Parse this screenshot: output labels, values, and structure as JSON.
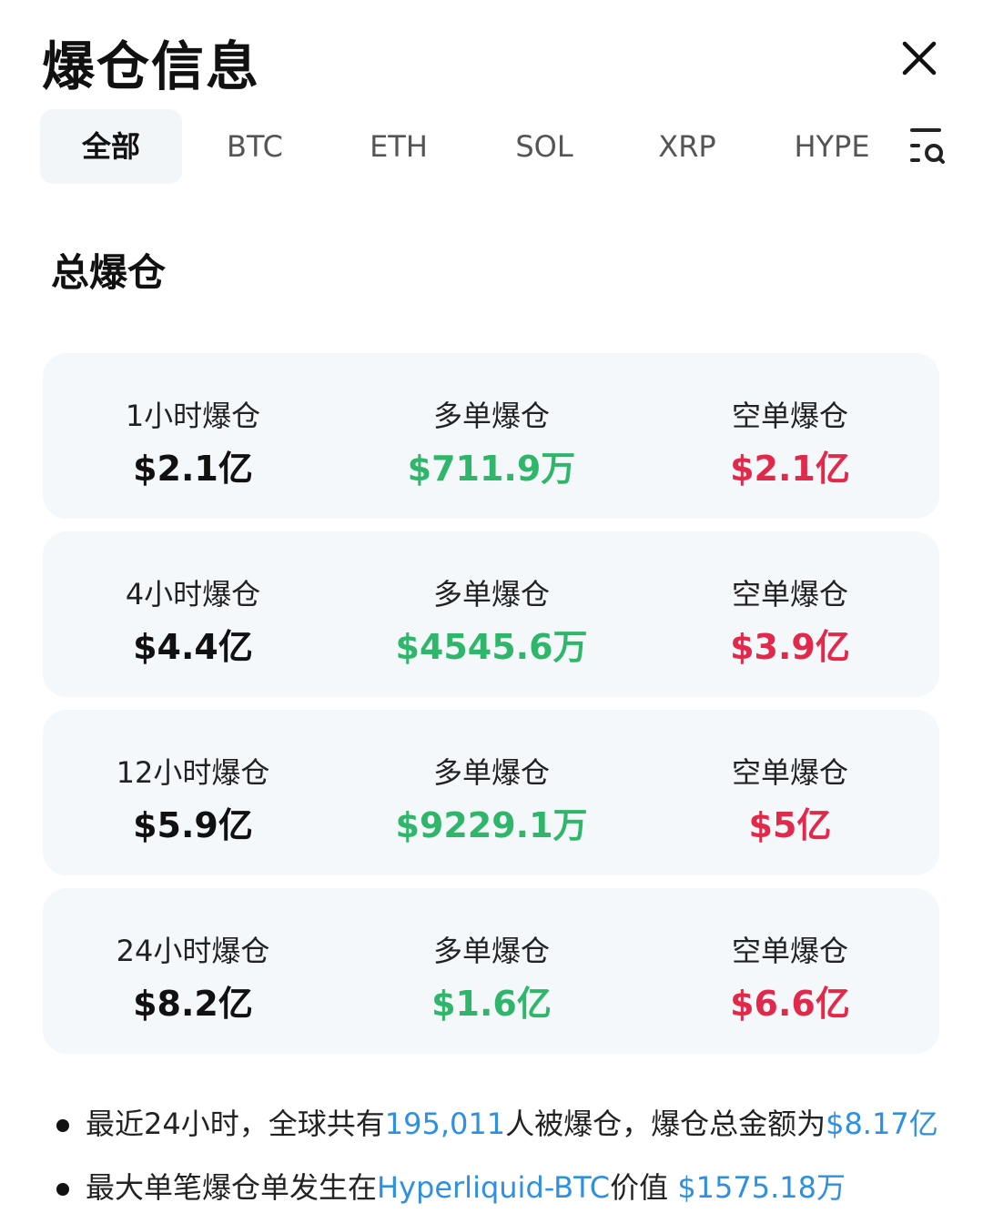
{
  "header": {
    "title": "爆仓信息",
    "close_icon": "close-icon"
  },
  "tabs": [
    {
      "label": "全部",
      "active": true
    },
    {
      "label": "BTC"
    },
    {
      "label": "ETH"
    },
    {
      "label": "SOL"
    },
    {
      "label": "XRP"
    },
    {
      "label": "HYPE"
    }
  ],
  "filter_icon": "list-search-icon",
  "section_title": "总爆仓",
  "colors": {
    "long": "#2fb66b",
    "short": "#e12a4b",
    "link": "#2f8fe0"
  },
  "rows": [
    {
      "period": "1小时爆仓",
      "total": "$2.1亿",
      "long_label": "多单爆仓",
      "long": "$711.9万",
      "short_label": "空单爆仓",
      "short": "$2.1亿"
    },
    {
      "period": "4小时爆仓",
      "total": "$4.4亿",
      "long_label": "多单爆仓",
      "long": "$4545.6万",
      "short_label": "空单爆仓",
      "short": "$3.9亿"
    },
    {
      "period": "12小时爆仓",
      "total": "$5.9亿",
      "long_label": "多单爆仓",
      "long": "$9229.1万",
      "short_label": "空单爆仓",
      "short": "$5亿"
    },
    {
      "period": "24小时爆仓",
      "total": "$8.2亿",
      "long_label": "多单爆仓",
      "long": "$1.6亿",
      "short_label": "空单爆仓",
      "short": "$6.6亿"
    }
  ],
  "notes": [
    {
      "a": "最近24小时，全球共有",
      "b": "195,011",
      "c": "人被爆仓，爆仓总金额为",
      "d": "$8.17亿"
    },
    {
      "a": "最大单笔爆仓单发生在",
      "b": "Hyperliquid-BTC",
      "c": "价值 ",
      "d": "$1575.18万"
    }
  ]
}
